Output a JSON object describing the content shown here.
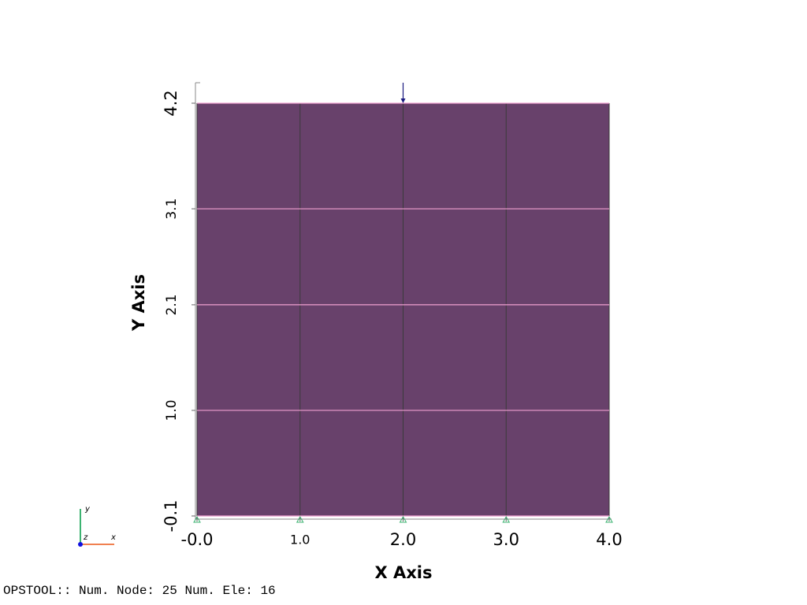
{
  "chart_data": {
    "type": "mesh",
    "xlabel": "X Axis",
    "ylabel": "Y Axis",
    "xlim": [
      0,
      4
    ],
    "ylim": [
      -0.1,
      4.2
    ],
    "xticks": [
      {
        "value": 0,
        "label": "-0.0"
      },
      {
        "value": 1,
        "label": "1.0"
      },
      {
        "value": 2,
        "label": "2.0"
      },
      {
        "value": 3,
        "label": "3.0"
      },
      {
        "value": 4,
        "label": "4.0"
      }
    ],
    "yticks": [
      -0.1,
      {
        "value": 1,
        "label": "1.0"
      },
      2.1,
      3.1,
      4.2
    ],
    "mesh_x": [
      0,
      1,
      2,
      3,
      4
    ],
    "mesh_y": [
      -0.1,
      1,
      2.1,
      3.1,
      4.2
    ],
    "color": "#68416b",
    "triad": {
      "x": "x",
      "y": "y",
      "z": "z"
    },
    "footer": "OPSTOOL:: Num. Node: 25 Num. Ele: 16"
  }
}
